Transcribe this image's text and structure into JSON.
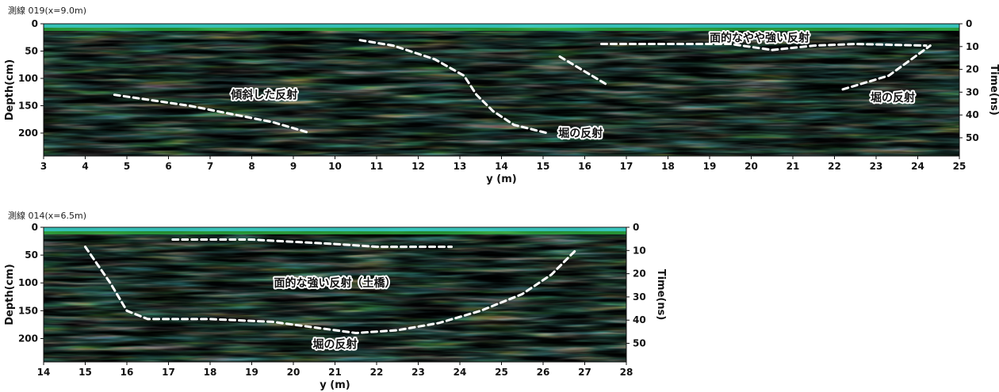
{
  "chart_data": [
    {
      "type": "heatmap",
      "title": "測線 019(x=9.0m)",
      "xlabel": "y (m)",
      "ylabel": "Depth(cm)",
      "y2label": "Time(ns)",
      "xlim": [
        3,
        25
      ],
      "x_ticks": [
        "3",
        "4",
        "5",
        "6",
        "7",
        "8",
        "9",
        "10",
        "11",
        "12",
        "13",
        "14",
        "15",
        "16",
        "17",
        "18",
        "19",
        "20",
        "21",
        "22",
        "23",
        "24",
        "25"
      ],
      "depth_ticks": [
        "0",
        "50",
        "100",
        "150",
        "200"
      ],
      "time_ticks": [
        "0",
        "10",
        "20",
        "30",
        "40",
        "50"
      ],
      "annotations": [
        {
          "text": "面的なやや強い反射",
          "x": 20.2,
          "depth": 25
        },
        {
          "text": "傾斜した反射",
          "x": 8.3,
          "depth": 130
        },
        {
          "text": "堀の反射",
          "x": 15.9,
          "depth": 200
        },
        {
          "text": "堀の反射",
          "x": 23.4,
          "depth": 135
        }
      ],
      "dashed_lines": [
        {
          "name": "surface-reflector",
          "points": [
            [
              10.6,
              30
            ],
            [
              11.4,
              40
            ],
            [
              12.4,
              65
            ],
            [
              13.1,
              95
            ],
            [
              13.4,
              130
            ],
            [
              13.8,
              160
            ],
            [
              14.3,
              185
            ],
            [
              15.1,
              200
            ]
          ]
        },
        {
          "name": "moat-left-wall",
          "points": [
            [
              15.4,
              60
            ],
            [
              16.5,
              110
            ]
          ]
        },
        {
          "name": "flat-reflector",
          "points": [
            [
              16.4,
              37
            ],
            [
              18,
              37
            ],
            [
              19.5,
              37
            ],
            [
              20.5,
              48
            ],
            [
              21.5,
              40
            ],
            [
              22.5,
              37
            ],
            [
              24.2,
              40
            ]
          ]
        },
        {
          "name": "moat-right-wall",
          "points": [
            [
              22.2,
              120
            ],
            [
              23.3,
              95
            ],
            [
              24.3,
              40
            ]
          ]
        },
        {
          "name": "inclined-reflector",
          "points": [
            [
              4.7,
              130
            ],
            [
              6.5,
              150
            ],
            [
              8.5,
              180
            ],
            [
              9.4,
              200
            ]
          ]
        }
      ]
    },
    {
      "type": "heatmap",
      "title": "測線 014(x=6.5m)",
      "xlabel": "y (m)",
      "ylabel": "Depth(cm)",
      "y2label": "Time(ns)",
      "xlim": [
        14,
        28
      ],
      "x_ticks": [
        "14",
        "15",
        "16",
        "17",
        "18",
        "19",
        "20",
        "21",
        "22",
        "23",
        "24",
        "25",
        "26",
        "27",
        "28"
      ],
      "depth_ticks": [
        "0",
        "50",
        "100",
        "150",
        "200"
      ],
      "time_ticks": [
        "0",
        "10",
        "20",
        "30",
        "40",
        "50"
      ],
      "annotations": [
        {
          "text": "面的な強い反射（土橋）",
          "x": 21,
          "depth": 100
        },
        {
          "text": "堀の反射",
          "x": 21,
          "depth": 210
        }
      ],
      "dashed_lines": [
        {
          "name": "bridge-top",
          "points": [
            [
              17.1,
              22
            ],
            [
              19,
              22
            ],
            [
              21,
              30
            ],
            [
              22,
              35
            ],
            [
              23.8,
              35
            ]
          ]
        },
        {
          "name": "moat-bottom",
          "points": [
            [
              15,
              35
            ],
            [
              15.6,
              100
            ],
            [
              16,
              150
            ],
            [
              16.5,
              165
            ],
            [
              18,
              165
            ],
            [
              19.5,
              170
            ],
            [
              21.5,
              190
            ],
            [
              22.5,
              185
            ],
            [
              23.5,
              172
            ],
            [
              24.5,
              150
            ],
            [
              25.5,
              120
            ],
            [
              26.2,
              85
            ],
            [
              26.8,
              40
            ]
          ]
        }
      ]
    }
  ]
}
